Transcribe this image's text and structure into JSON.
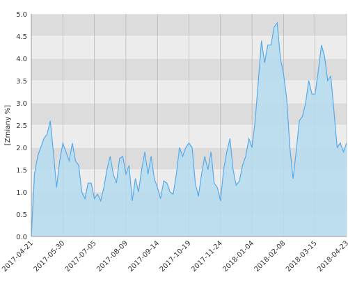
{
  "chart_data": {
    "type": "area",
    "y_label": "[Zmiany %]",
    "categories": [
      "2017-04-21",
      null,
      null,
      null,
      null,
      null,
      null,
      null,
      null,
      null,
      "2017-05-30",
      null,
      null,
      null,
      null,
      null,
      null,
      null,
      null,
      null,
      "2017-07-05",
      null,
      null,
      null,
      null,
      null,
      null,
      null,
      null,
      null,
      "2017-08-09",
      null,
      null,
      null,
      null,
      null,
      null,
      null,
      null,
      null,
      "2017-09-14",
      null,
      null,
      null,
      null,
      null,
      null,
      null,
      null,
      null,
      "2017-10-19",
      null,
      null,
      null,
      null,
      null,
      null,
      null,
      null,
      null,
      "2017-11-24",
      null,
      null,
      null,
      null,
      null,
      null,
      null,
      null,
      null,
      "2018-01-04",
      null,
      null,
      null,
      null,
      null,
      null,
      null,
      null,
      null,
      "2018-02-08",
      null,
      null,
      null,
      null,
      null,
      null,
      null,
      null,
      null,
      "2018-03-15",
      null,
      null,
      null,
      null,
      null,
      null,
      null,
      null,
      null,
      "2018-04-23"
    ],
    "series": [
      {
        "color": "#55aaea",
        "fill": "#b5dcee",
        "values": [
          0,
          1.4,
          1.8,
          2.0,
          2.2,
          2.3,
          2.6,
          1.9,
          1.1,
          1.7,
          2.1,
          1.9,
          1.7,
          2.1,
          1.7,
          1.6,
          1.0,
          0.85,
          1.2,
          1.2,
          0.85,
          0.95,
          0.8,
          1.1,
          1.5,
          1.8,
          1.4,
          1.2,
          1.75,
          1.8,
          1.4,
          1.6,
          0.8,
          1.3,
          1.0,
          1.5,
          1.9,
          1.4,
          1.8,
          1.3,
          1.1,
          0.85,
          1.25,
          1.2,
          1.0,
          0.95,
          1.4,
          2.0,
          1.8,
          2.0,
          2.1,
          2.0,
          1.2,
          0.9,
          1.4,
          1.8,
          1.5,
          1.9,
          1.2,
          1.1,
          0.8,
          1.5,
          1.9,
          2.2,
          1.5,
          1.15,
          1.25,
          1.6,
          1.8,
          2.2,
          2.0,
          2.6,
          3.5,
          4.4,
          3.9,
          4.3,
          4.3,
          4.7,
          4.8,
          4.0,
          3.65,
          3.1,
          2.0,
          1.3,
          1.9,
          2.6,
          2.7,
          3.0,
          3.5,
          3.2,
          3.2,
          3.7,
          4.3,
          4.05,
          3.5,
          3.6,
          2.8,
          2.0,
          2.1,
          1.9,
          2.1
        ]
      }
    ],
    "ylim": [
      0,
      5
    ],
    "yticks": [
      {
        "value": 0,
        "label": "0.0"
      },
      0.5,
      {
        "value": 1,
        "label": "1.0"
      },
      1.5,
      {
        "value": 2,
        "label": "2.0"
      },
      2.5,
      {
        "value": 3,
        "label": "3.0"
      },
      3.5,
      {
        "value": 4,
        "label": "4.0"
      },
      4.5,
      {
        "value": 5,
        "label": "5.0"
      }
    ],
    "grid": true
  }
}
